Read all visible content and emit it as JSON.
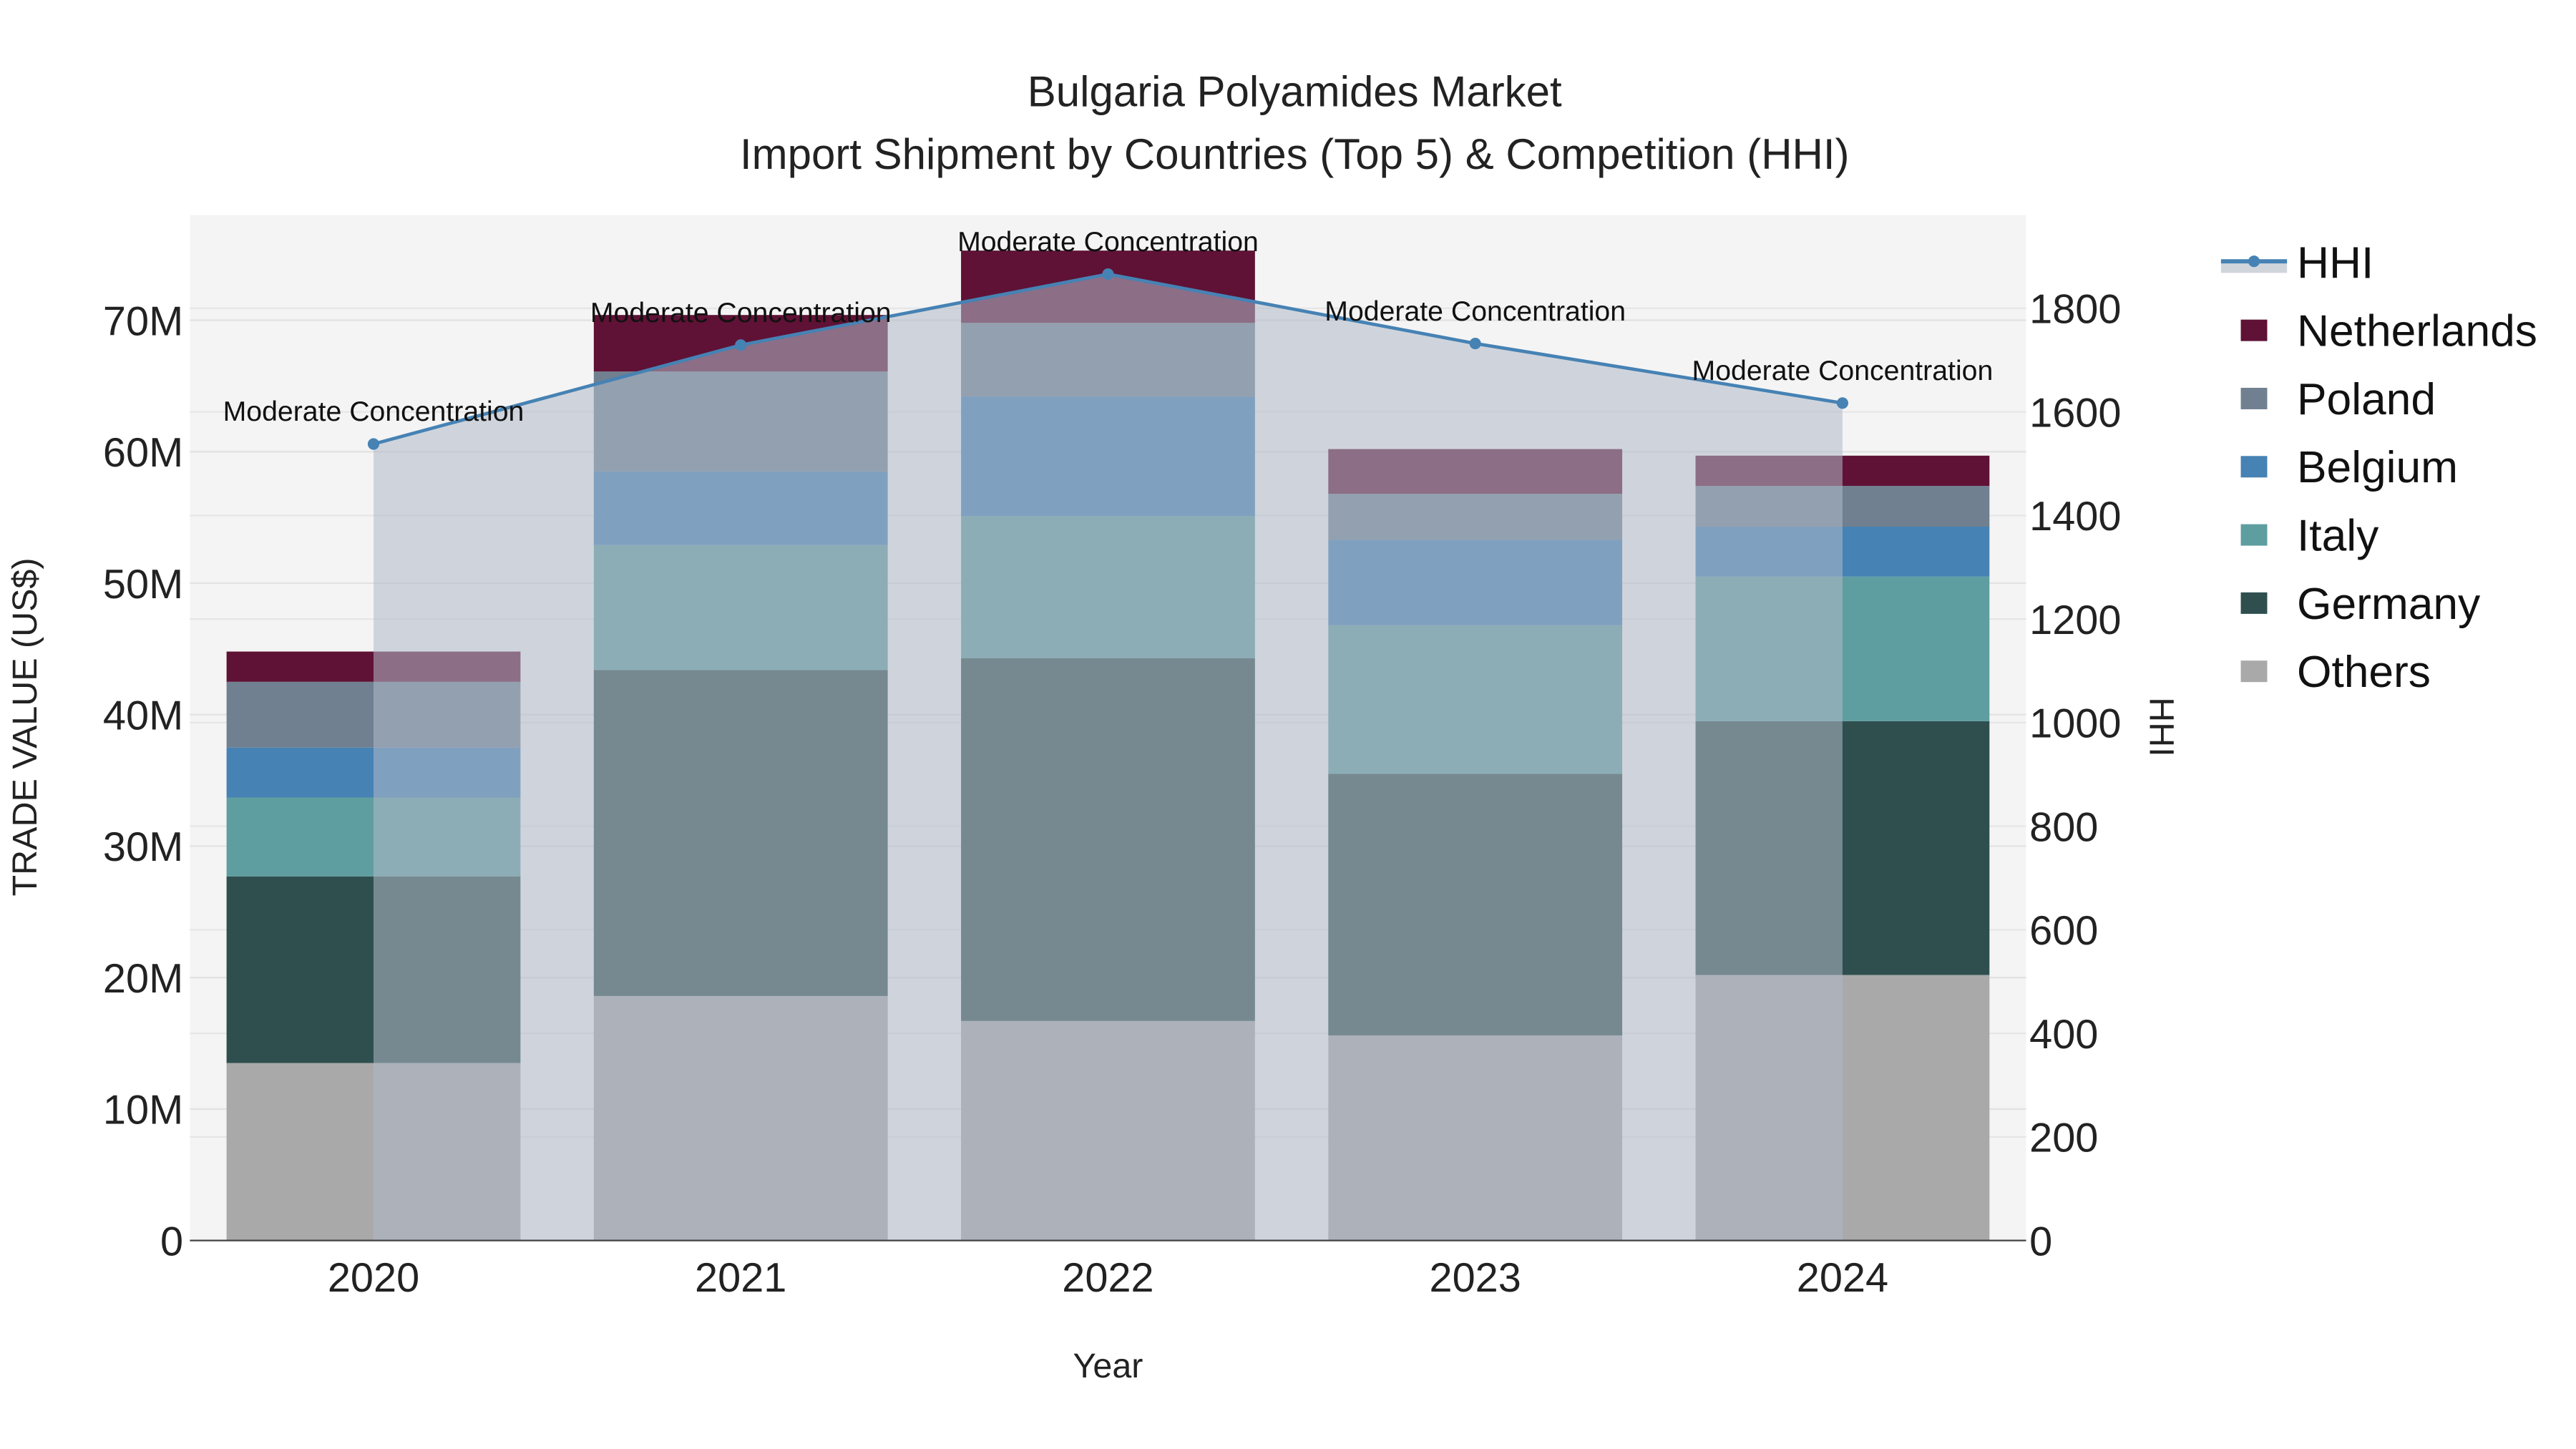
{
  "chart_data": {
    "type": "bar",
    "title_line1": "Bulgaria Polyamides Market",
    "title_line2": "Import Shipment by Countries (Top 5) & Competition (HHI)",
    "xlabel": "Year",
    "ylabel": "TRADE VALUE (US$)",
    "y2label": "HHI",
    "categories": [
      "2020",
      "2021",
      "2022",
      "2023",
      "2024"
    ],
    "ylim": [
      0,
      78000000
    ],
    "y2lim": [
      0,
      1980
    ],
    "yticks": [
      0,
      10000000,
      20000000,
      30000000,
      40000000,
      50000000,
      60000000,
      70000000
    ],
    "ytick_labels": [
      "0",
      "10M",
      "20M",
      "30M",
      "40M",
      "50M",
      "60M",
      "70M"
    ],
    "y2ticks": [
      0,
      200,
      400,
      600,
      800,
      1000,
      1200,
      1400,
      1600,
      1800
    ],
    "y2tick_labels": [
      "0",
      "200",
      "400",
      "600",
      "800",
      "1000",
      "1200",
      "1400",
      "1600",
      "1800"
    ],
    "grid": true,
    "legend_position": "right",
    "series": [
      {
        "name": "Others",
        "color": "#a9a9a9",
        "values": [
          13500000,
          18600000,
          16700000,
          15600000,
          20200000
        ]
      },
      {
        "name": "Germany",
        "color": "#2f4f4f",
        "values": [
          14200000,
          24800000,
          27600000,
          19900000,
          19300000
        ]
      },
      {
        "name": "Italy",
        "color": "#5f9ea0",
        "values": [
          6000000,
          9500000,
          10800000,
          11300000,
          11000000
        ]
      },
      {
        "name": "Belgium",
        "color": "#4682b4",
        "values": [
          3800000,
          5600000,
          9100000,
          6500000,
          3800000
        ]
      },
      {
        "name": "Poland",
        "color": "#708090",
        "values": [
          5000000,
          7600000,
          5600000,
          3500000,
          3100000
        ]
      },
      {
        "name": "Netherlands",
        "color": "#5f1235",
        "values": [
          2300000,
          4300000,
          5500000,
          3400000,
          2300000
        ]
      }
    ],
    "hhi": {
      "name": "HHI",
      "color": "#4682b4",
      "values": [
        1538,
        1729,
        1866,
        1732,
        1617
      ],
      "annotations": [
        "Moderate Concentration",
        "Moderate Concentration",
        "Moderate Concentration",
        "Moderate Concentration",
        "Moderate Concentration"
      ]
    },
    "legend_order": [
      "HHI",
      "Netherlands",
      "Poland",
      "Belgium",
      "Italy",
      "Germany",
      "Others"
    ]
  }
}
